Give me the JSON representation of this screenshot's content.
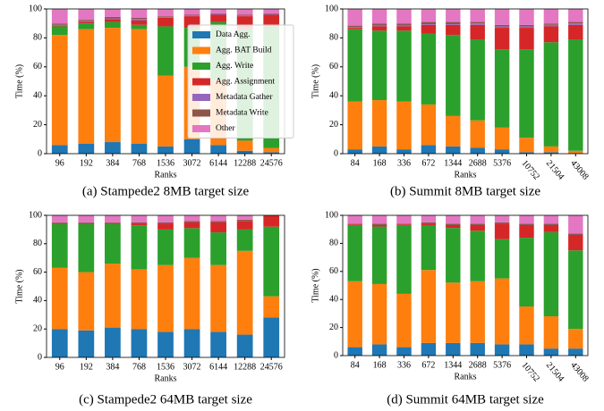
{
  "chart_data": [
    {
      "type": "bar",
      "stacked": true,
      "caption": "(a) Stampede2 8MB target size",
      "xlabel": "Ranks",
      "ylabel": "Time (%)",
      "categories": [
        "96",
        "192",
        "384",
        "768",
        "1536",
        "3072",
        "6144",
        "12288",
        "24576"
      ],
      "ylim": [
        0,
        100
      ],
      "yticks": [
        0,
        20,
        40,
        60,
        80,
        100
      ],
      "legend": "upper right",
      "series": [
        {
          "name": "Data Agg.",
          "color": "#1f77b4",
          "values": [
            6,
            7,
            8,
            7,
            5,
            10,
            6,
            2,
            1
          ]
        },
        {
          "name": "Agg. BAT Build",
          "color": "#ff7f0e",
          "values": [
            76,
            79,
            79,
            79,
            49,
            50,
            45,
            7,
            3
          ]
        },
        {
          "name": "Agg. Write",
          "color": "#2ca02c",
          "values": [
            6,
            4,
            4,
            3,
            34,
            27,
            40,
            77,
            84
          ]
        },
        {
          "name": "Agg. Assignment",
          "color": "#d62728",
          "values": [
            0.5,
            1,
            2,
            3,
            6,
            8,
            5,
            9,
            8
          ]
        },
        {
          "name": "Metadata Gather",
          "color": "#9467bd",
          "values": [
            0.5,
            0.5,
            0.5,
            1,
            0.5,
            0.5,
            0.5,
            0.5,
            0.5
          ]
        },
        {
          "name": "Metadata Write",
          "color": "#8c564b",
          "values": [
            1,
            1,
            1,
            1,
            0.5,
            0.5,
            0.5,
            0.5,
            0.5
          ]
        },
        {
          "name": "Other",
          "color": "#e377c2",
          "values": [
            10,
            7.5,
            5.5,
            6,
            5,
            4,
            3,
            4,
            3
          ]
        }
      ]
    },
    {
      "type": "bar",
      "stacked": true,
      "caption": "(b) Summit 8MB target size",
      "xlabel": "Ranks",
      "ylabel": "Time (%)",
      "categories": [
        "84",
        "168",
        "336",
        "672",
        "1344",
        "2688",
        "5376",
        "10752",
        "21504",
        "43008"
      ],
      "ylim": [
        0,
        100
      ],
      "yticks": [
        0,
        20,
        40,
        60,
        80,
        100
      ],
      "rotate_long_labels": true,
      "series": [
        {
          "color": "#1f77b4",
          "values": [
            3,
            5,
            3,
            6,
            5,
            4,
            3,
            1,
            1,
            0.5
          ]
        },
        {
          "color": "#ff7f0e",
          "values": [
            33,
            32,
            33,
            28,
            21,
            19,
            15,
            10,
            4,
            1.5
          ]
        },
        {
          "color": "#2ca02c",
          "values": [
            50,
            48,
            49,
            49,
            56,
            56,
            54,
            61,
            72,
            77
          ]
        },
        {
          "color": "#d62728",
          "values": [
            1,
            3,
            3,
            6,
            7,
            10,
            15,
            15,
            11,
            10
          ]
        },
        {
          "color": "#9467bd",
          "values": [
            0.5,
            0.5,
            0.5,
            0.5,
            0.5,
            1,
            1,
            1,
            1,
            1
          ]
        },
        {
          "color": "#8c564b",
          "values": [
            1,
            1.5,
            1.5,
            1.5,
            1.5,
            1,
            1,
            1,
            1,
            1
          ]
        },
        {
          "color": "#e377c2",
          "values": [
            11.5,
            10,
            10,
            9,
            9,
            9,
            11,
            11,
            10,
            9
          ]
        }
      ]
    },
    {
      "type": "bar",
      "stacked": true,
      "caption": "(c) Stampede2 64MB target size",
      "xlabel": "Ranks",
      "ylabel": "Time (%)",
      "categories": [
        "96",
        "192",
        "384",
        "768",
        "1536",
        "3072",
        "6144",
        "12288",
        "24576"
      ],
      "ylim": [
        0,
        100
      ],
      "yticks": [
        0,
        20,
        40,
        60,
        80,
        100
      ],
      "series": [
        {
          "color": "#1f77b4",
          "values": [
            20,
            19,
            21,
            20,
            18,
            20,
            18,
            16,
            28
          ]
        },
        {
          "color": "#ff7f0e",
          "values": [
            43,
            41,
            45,
            42,
            47,
            50,
            47,
            59,
            15
          ]
        },
        {
          "color": "#2ca02c",
          "values": [
            31,
            34,
            28,
            31,
            25,
            21,
            23,
            15,
            49
          ]
        },
        {
          "color": "#d62728",
          "values": [
            0.5,
            0.5,
            0.5,
            1,
            4,
            4,
            7,
            6,
            8
          ]
        },
        {
          "color": "#9467bd",
          "values": [
            0,
            0,
            0,
            0,
            0,
            0,
            0,
            0,
            0
          ]
        },
        {
          "color": "#8c564b",
          "values": [
            0.5,
            0.5,
            0.5,
            1,
            1,
            1,
            1,
            1,
            0
          ]
        },
        {
          "color": "#e377c2",
          "values": [
            5,
            5,
            5,
            5,
            5,
            4,
            4,
            3,
            0
          ]
        }
      ]
    },
    {
      "type": "bar",
      "stacked": true,
      "caption": "(d) Summit 64MB target size",
      "xlabel": "Ranks",
      "ylabel": "Time (%)",
      "categories": [
        "84",
        "168",
        "336",
        "672",
        "1344",
        "2688",
        "5376",
        "10752",
        "21504",
        "43008"
      ],
      "ylim": [
        0,
        100
      ],
      "yticks": [
        0,
        20,
        40,
        60,
        80,
        100
      ],
      "rotate_long_labels": true,
      "series": [
        {
          "color": "#1f77b4",
          "values": [
            6,
            8,
            6,
            9,
            9,
            9,
            8,
            8,
            5,
            5
          ]
        },
        {
          "color": "#ff7f0e",
          "values": [
            47,
            43,
            38,
            52,
            43,
            44,
            47,
            27,
            23,
            14
          ]
        },
        {
          "color": "#2ca02c",
          "values": [
            40,
            41,
            49,
            32,
            39,
            36,
            28,
            49,
            60,
            56
          ]
        },
        {
          "color": "#d62728",
          "values": [
            0.5,
            1,
            0.5,
            1,
            2,
            4,
            11,
            9,
            5,
            11
          ]
        },
        {
          "color": "#9467bd",
          "values": [
            0,
            0,
            0,
            0,
            0,
            0,
            0,
            0,
            0,
            0
          ]
        },
        {
          "color": "#8c564b",
          "values": [
            0.5,
            1,
            0.5,
            1,
            1,
            1,
            1,
            1,
            1,
            1
          ]
        },
        {
          "color": "#e377c2",
          "values": [
            6,
            6,
            6,
            5,
            6,
            6,
            5,
            6,
            6,
            13
          ]
        }
      ]
    }
  ]
}
